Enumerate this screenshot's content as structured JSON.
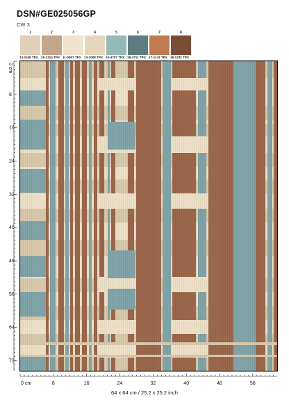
{
  "header": {
    "title": "DSN#GE025056GP",
    "colorway": "CW 3"
  },
  "palette": [
    {
      "index": "1",
      "code": "13-1106 TPX",
      "color": "#e1cfba"
    },
    {
      "index": "2",
      "code": "15-1314 TPX",
      "color": "#c4a688"
    },
    {
      "index": "3",
      "code": "11-0907 TPX",
      "color": "#f0e3cd"
    },
    {
      "index": "4",
      "code": "13-1008 TPX",
      "color": "#e6d6bb"
    },
    {
      "index": "5",
      "code": "15-4707 TPX",
      "color": "#95b8b9"
    },
    {
      "index": "6",
      "code": "18-4711 TPX",
      "color": "#5f7d80"
    },
    {
      "index": "7",
      "code": "17-1143 TPX",
      "color": "#c07a4f"
    },
    {
      "index": "8",
      "code": "18-1232 TPX",
      "color": "#7a4c36"
    }
  ],
  "rug_colors": {
    "cream": "#ece0c7",
    "tan": "#d8c7aa",
    "teal": "#7fa2a6",
    "brown": "#9a6549",
    "frame": "#111111"
  },
  "ruler": {
    "left_ticks": [
      "0 cm",
      "8",
      "16",
      "24",
      "32",
      "40",
      "48",
      "56",
      "64",
      "72"
    ],
    "bottom_ticks": [
      "0 cm",
      "8",
      "16",
      "24",
      "32",
      "40",
      "48",
      "56"
    ]
  },
  "size_label": "64 x 64 cm / 25.2 x 25.2 inch"
}
